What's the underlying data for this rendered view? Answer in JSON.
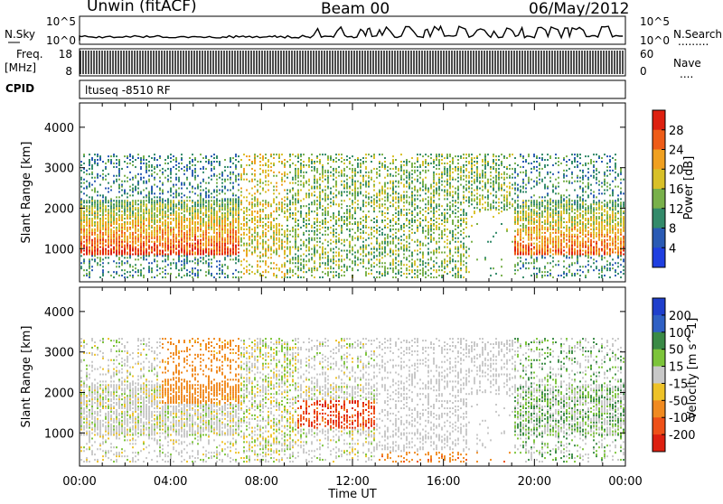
{
  "header": {
    "station": "Unwin (fitACF)",
    "beam": "Beam 00",
    "date": "06/May/2012"
  },
  "strip_labels": {
    "nsky": "N.Sky",
    "freq_line1": "Freq.",
    "freq_line2": "[MHz]",
    "cpid": "CPID",
    "nsearch": "N.Search",
    "nave": "Nave",
    "dots": ".........",
    "nave_dots": "....",
    "nsky_ticks": [
      "10^5",
      "10^0"
    ],
    "freq_ticks": [
      "18",
      "8"
    ],
    "nsearch_ticks": [
      "10^5",
      "10^0"
    ],
    "nave_ticks": [
      "60",
      "0"
    ],
    "cpid_text": "ltuseq -8510 RF"
  },
  "chart_data": [
    {
      "type": "heatmap",
      "name": "power",
      "ylabel": "Slant Range [km]",
      "xlabel": "Time UT",
      "x_ticks": [
        "00:00",
        "04:00",
        "08:00",
        "12:00",
        "16:00",
        "20:00",
        "00:00"
      ],
      "x_range_hours": [
        0,
        24
      ],
      "y_ticks": [
        "1000",
        "2000",
        "3000",
        "4000"
      ],
      "y_range_km": [
        180,
        4600
      ],
      "colorbar": {
        "label": "Power [dB]",
        "ticks": [
          "4",
          "8",
          "12",
          "16",
          "20",
          "24",
          "28"
        ],
        "range": [
          0,
          32
        ],
        "colors": [
          "#1f3fe0",
          "#2a5ab4",
          "#338a6a",
          "#78b04a",
          "#d8c028",
          "#f0a020",
          "#ee5c18",
          "#dd2010"
        ]
      }
    },
    {
      "type": "heatmap",
      "name": "velocity",
      "ylabel": "Slant Range [km]",
      "xlabel": "Time UT",
      "x_ticks": [
        "00:00",
        "04:00",
        "08:00",
        "12:00",
        "16:00",
        "20:00",
        "00:00"
      ],
      "x_range_hours": [
        0,
        24
      ],
      "y_ticks": [
        "1000",
        "2000",
        "3000",
        "4000"
      ],
      "y_range_km": [
        180,
        4600
      ],
      "colorbar": {
        "label": "Velocity [m s^-1]",
        "ticks": [
          "200",
          "100",
          "50",
          "15",
          "-15",
          "-50",
          "-100",
          "-200"
        ],
        "colors": [
          "#1f3fcc",
          "#2f60c4",
          "#3a8a46",
          "#7cc43a",
          "#c8c8c8",
          "#eec228",
          "#f08a20",
          "#ee5018",
          "#dd2010"
        ]
      }
    }
  ]
}
